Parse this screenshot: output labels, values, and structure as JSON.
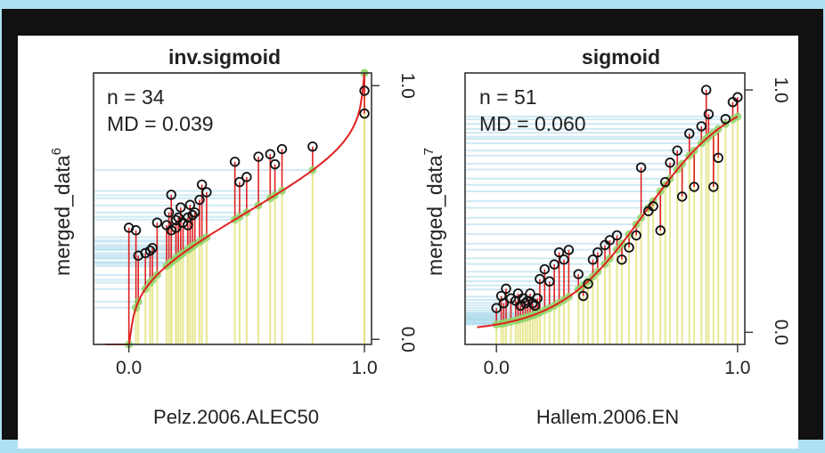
{
  "chart_data": [
    {
      "type": "scatter",
      "title": "inv.sigmoid",
      "xlabel": "Pelz.2006.ALEC50",
      "ylabel": "merged_data",
      "ylabel_sup": "6",
      "x_ticks": [
        "0.0",
        "1.0"
      ],
      "y_ticks": [
        "0.0",
        "1.0"
      ],
      "xlim": [
        -0.15,
        1.03
      ],
      "ylim": [
        -0.02,
        1.05
      ],
      "annotations": [
        "n = 34",
        "MD = 0.039"
      ],
      "grid": false,
      "fit": "inv.sigmoid",
      "points": [
        [
          0.0,
          0.44
        ],
        [
          0.03,
          0.43
        ],
        [
          0.04,
          0.33
        ],
        [
          0.07,
          0.34
        ],
        [
          0.09,
          0.35
        ],
        [
          0.12,
          0.46
        ],
        [
          0.17,
          0.5
        ],
        [
          0.18,
          0.43
        ],
        [
          0.2,
          0.44
        ],
        [
          0.21,
          0.48
        ],
        [
          0.23,
          0.46
        ],
        [
          0.25,
          0.45
        ],
        [
          0.18,
          0.57
        ],
        [
          0.22,
          0.52
        ],
        [
          0.26,
          0.53
        ],
        [
          0.27,
          0.49
        ],
        [
          0.3,
          0.55
        ],
        [
          0.2,
          0.47
        ],
        [
          0.28,
          0.5
        ],
        [
          0.33,
          0.58
        ],
        [
          0.31,
          0.61
        ],
        [
          0.45,
          0.7
        ],
        [
          0.47,
          0.62
        ],
        [
          0.5,
          0.64
        ],
        [
          0.55,
          0.72
        ],
        [
          0.6,
          0.73
        ],
        [
          0.62,
          0.69
        ],
        [
          0.65,
          0.75
        ],
        [
          0.78,
          0.76
        ],
        [
          1.0,
          0.98
        ],
        [
          1.0,
          0.89
        ],
        [
          0.25,
          0.48
        ],
        [
          0.16,
          0.45
        ],
        [
          0.1,
          0.36
        ]
      ]
    },
    {
      "type": "scatter",
      "title": "sigmoid",
      "xlabel": "Hallem.2006.EN",
      "ylabel": "merged_data",
      "ylabel_sup": "7",
      "x_ticks": [
        "0.0",
        "1.0"
      ],
      "y_ticks": [
        "0.0",
        "1.0"
      ],
      "xlim": [
        -0.13,
        1.03
      ],
      "ylim": [
        -0.05,
        1.07
      ],
      "annotations": [
        "n = 51",
        "MD = 0.060"
      ],
      "grid": false,
      "fit": "sigmoid",
      "points": [
        [
          0.0,
          0.1
        ],
        [
          0.02,
          0.15
        ],
        [
          0.03,
          0.12
        ],
        [
          0.04,
          0.18
        ],
        [
          0.06,
          0.14
        ],
        [
          0.08,
          0.13
        ],
        [
          0.09,
          0.16
        ],
        [
          0.1,
          0.11
        ],
        [
          0.11,
          0.14
        ],
        [
          0.12,
          0.12
        ],
        [
          0.13,
          0.13
        ],
        [
          0.14,
          0.16
        ],
        [
          0.15,
          0.12
        ],
        [
          0.16,
          0.11
        ],
        [
          0.17,
          0.14
        ],
        [
          0.18,
          0.22
        ],
        [
          0.2,
          0.26
        ],
        [
          0.22,
          0.21
        ],
        [
          0.24,
          0.28
        ],
        [
          0.26,
          0.33
        ],
        [
          0.28,
          0.3
        ],
        [
          0.3,
          0.34
        ],
        [
          0.34,
          0.24
        ],
        [
          0.36,
          0.15
        ],
        [
          0.38,
          0.2
        ],
        [
          0.4,
          0.3
        ],
        [
          0.42,
          0.33
        ],
        [
          0.45,
          0.36
        ],
        [
          0.47,
          0.38
        ],
        [
          0.5,
          0.4
        ],
        [
          0.52,
          0.3
        ],
        [
          0.55,
          0.35
        ],
        [
          0.58,
          0.4
        ],
        [
          0.6,
          0.68
        ],
        [
          0.63,
          0.5
        ],
        [
          0.65,
          0.52
        ],
        [
          0.68,
          0.42
        ],
        [
          0.7,
          0.62
        ],
        [
          0.72,
          0.7
        ],
        [
          0.75,
          0.75
        ],
        [
          0.77,
          0.56
        ],
        [
          0.8,
          0.82
        ],
        [
          0.82,
          0.6
        ],
        [
          0.85,
          0.85
        ],
        [
          0.88,
          0.9
        ],
        [
          0.9,
          0.6
        ],
        [
          0.92,
          0.72
        ],
        [
          0.95,
          0.88
        ],
        [
          0.98,
          0.95
        ],
        [
          1.0,
          0.97
        ],
        [
          0.87,
          1.0
        ]
      ]
    }
  ]
}
